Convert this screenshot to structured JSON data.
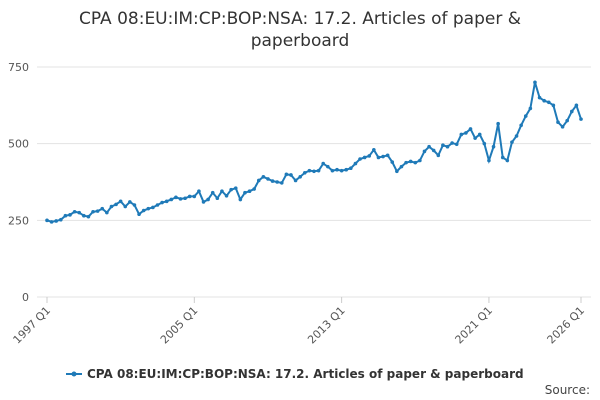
{
  "chart_data": {
    "type": "line",
    "title": "CPA 08:EU:IM:CP:BOP:NSA: 17.2. Articles of paper & paperboard",
    "source": "Source:",
    "categories": [
      "1997 Q1",
      null,
      null,
      null,
      null,
      null,
      null,
      null,
      null,
      null,
      null,
      null,
      null,
      null,
      null,
      null,
      null,
      null,
      null,
      null,
      null,
      null,
      null,
      null,
      null,
      null,
      null,
      null,
      null,
      null,
      null,
      null,
      "2005 Q1",
      null,
      null,
      null,
      null,
      null,
      null,
      null,
      null,
      null,
      null,
      null,
      null,
      null,
      null,
      null,
      null,
      null,
      null,
      null,
      null,
      null,
      null,
      null,
      null,
      null,
      null,
      null,
      null,
      null,
      null,
      null,
      "2013 Q1",
      null,
      null,
      null,
      null,
      null,
      null,
      null,
      null,
      null,
      null,
      null,
      null,
      null,
      null,
      null,
      null,
      null,
      null,
      null,
      null,
      null,
      null,
      null,
      null,
      null,
      null,
      null,
      null,
      null,
      null,
      null,
      "2021 Q1",
      null,
      null,
      null,
      null,
      null,
      null,
      null,
      null,
      null,
      null,
      null,
      null,
      null,
      null,
      null,
      null,
      null,
      null,
      null,
      "2026 Q1"
    ],
    "series": [
      {
        "name": "CPA 08:EU:IM:CP:BOP:NSA: 17.2. Articles of paper & paperboard",
        "color": "#1f7ab8",
        "values": [
          250,
          245,
          248,
          252,
          265,
          268,
          278,
          275,
          265,
          262,
          278,
          280,
          288,
          275,
          295,
          302,
          312,
          295,
          310,
          300,
          270,
          282,
          288,
          292,
          300,
          308,
          312,
          318,
          325,
          320,
          322,
          328,
          328,
          345,
          310,
          318,
          340,
          322,
          345,
          330,
          350,
          355,
          318,
          340,
          345,
          352,
          380,
          392,
          385,
          378,
          375,
          372,
          400,
          398,
          380,
          392,
          405,
          412,
          410,
          412,
          435,
          425,
          412,
          415,
          412,
          415,
          420,
          435,
          450,
          455,
          460,
          480,
          455,
          458,
          462,
          440,
          410,
          425,
          438,
          442,
          438,
          445,
          475,
          490,
          478,
          462,
          495,
          490,
          502,
          498,
          530,
          535,
          548,
          518,
          530,
          500,
          445,
          490,
          565,
          455,
          445,
          505,
          525,
          560,
          590,
          615,
          700,
          650,
          640,
          635,
          625,
          570,
          555,
          575,
          605,
          625,
          580
        ]
      }
    ],
    "ylim": [
      0,
      750
    ],
    "yticks": [
      0,
      250,
      500,
      750
    ],
    "grid": true,
    "legend": "bottom"
  }
}
